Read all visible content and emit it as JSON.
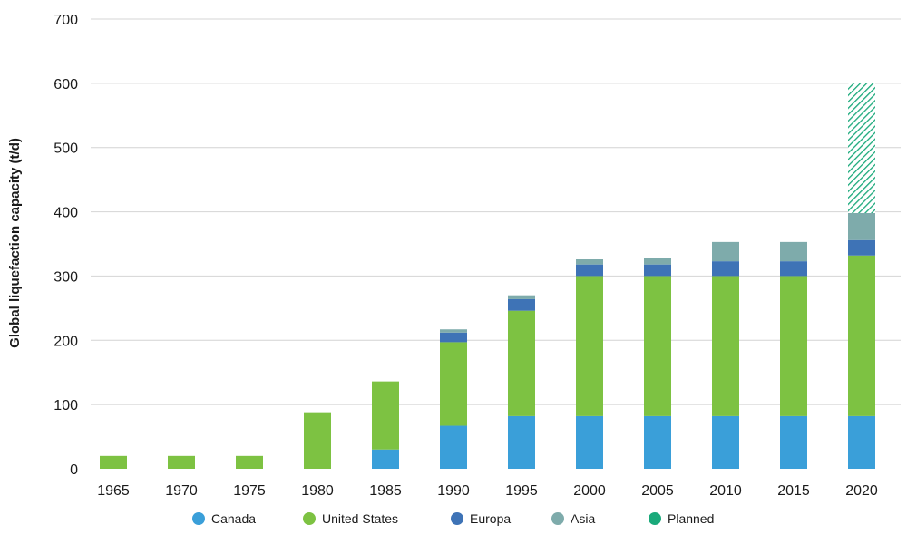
{
  "chart_data": {
    "type": "bar",
    "stacked": true,
    "ylabel": "Global liquefaction capacity (t/d)",
    "xlabel": "",
    "ylim": [
      0,
      700
    ],
    "yticks": [
      0,
      100,
      200,
      300,
      400,
      500,
      600,
      700
    ],
    "grid": true,
    "legend_position": "bottom",
    "categories": [
      "1965",
      "1970",
      "1975",
      "1980",
      "1985",
      "1990",
      "1995",
      "2000",
      "2005",
      "2010",
      "2015",
      "2020"
    ],
    "series": [
      {
        "name": "Canada",
        "color": "#3a9fd9",
        "values": [
          0,
          0,
          0,
          0,
          30,
          67,
          82,
          82,
          82,
          82,
          82,
          82
        ]
      },
      {
        "name": "United States",
        "color": "#7dc242",
        "values": [
          20,
          20,
          20,
          88,
          106,
          130,
          164,
          218,
          218,
          218,
          218,
          250
        ]
      },
      {
        "name": "Europa",
        "color": "#3e73b6",
        "values": [
          0,
          0,
          0,
          0,
          0,
          15,
          18,
          18,
          18,
          23,
          23,
          24
        ]
      },
      {
        "name": "Asia",
        "color": "#7eabab",
        "values": [
          0,
          0,
          0,
          0,
          0,
          5,
          6,
          8,
          10,
          30,
          30,
          42
        ]
      },
      {
        "name": "Planned",
        "color": "#19a97a",
        "pattern": "hatch",
        "values": [
          0,
          0,
          0,
          0,
          0,
          0,
          0,
          0,
          0,
          0,
          0,
          202
        ]
      }
    ]
  }
}
